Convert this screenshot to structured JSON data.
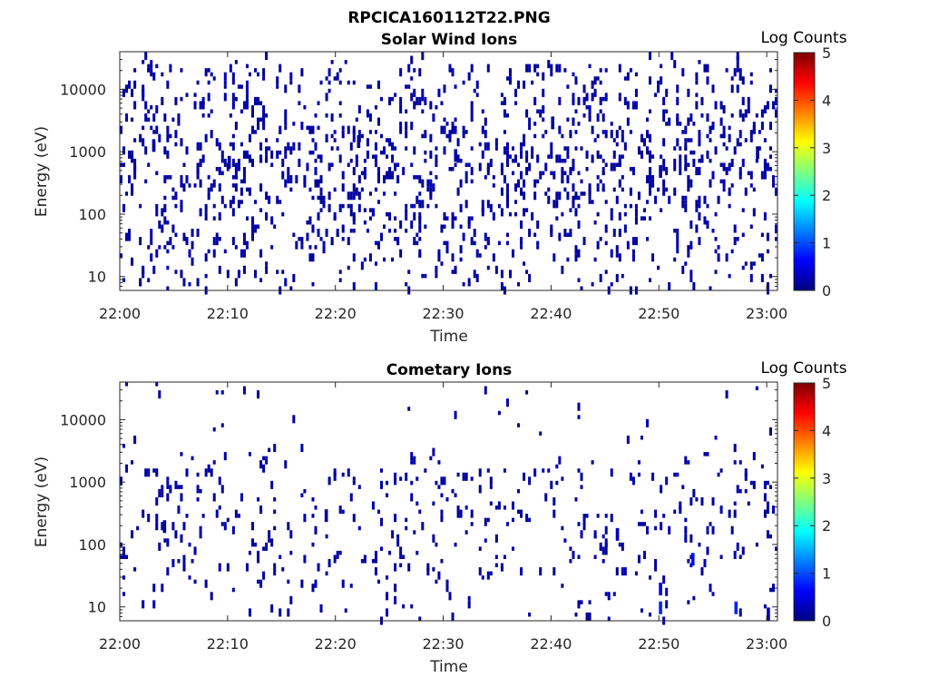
{
  "figure": {
    "title": "RPCICA160112T22.PNG"
  },
  "colorbar": {
    "colors": [
      "#00007f",
      "#0000ff",
      "#007fff",
      "#00ffff",
      "#7fff7f",
      "#ffff00",
      "#ff7f00",
      "#ff0000",
      "#7f0000"
    ]
  },
  "chart_data": [
    {
      "type": "heatmap",
      "title": "Solar Wind Ions",
      "xlabel": "Time",
      "ylabel": "Energy (eV)",
      "x_ticks": [
        "22:00",
        "22:10",
        "22:20",
        "22:30",
        "22:40",
        "22:50",
        "23:00"
      ],
      "y_ticks": [
        "10",
        "100",
        "1000",
        "10000"
      ],
      "y_scale": "log",
      "xlim": [
        "22:00",
        "23:01"
      ],
      "ylim": [
        6,
        40000
      ],
      "colorbar_label": "Log Counts",
      "colorbar_ticks": [
        "0",
        "1",
        "2",
        "3",
        "4",
        "5"
      ],
      "colorbar_range": [
        0,
        5
      ],
      "grid": false,
      "description_of_values": "sparse single-count pixels (log counts 0-0.3) scattered 20-20000 eV across full hour",
      "sample_points": [
        {
          "time": "22:03",
          "energy_eV": 1300,
          "log_counts": 0.2
        },
        {
          "time": "22:10",
          "energy_eV": 700,
          "log_counts": 0.1
        },
        {
          "time": "22:22",
          "energy_eV": 1500,
          "log_counts": 0.1
        },
        {
          "time": "22:31",
          "energy_eV": 900,
          "log_counts": 0.2
        },
        {
          "time": "22:40",
          "energy_eV": 3000,
          "log_counts": 0.1
        },
        {
          "time": "22:50",
          "energy_eV": 500,
          "log_counts": 0.2
        },
        {
          "time": "22:59",
          "energy_eV": 1000,
          "log_counts": 0.1
        }
      ]
    },
    {
      "type": "heatmap",
      "title": "Cometary Ions",
      "xlabel": "Time",
      "ylabel": "Energy (eV)",
      "x_ticks": [
        "22:00",
        "22:10",
        "22:20",
        "22:30",
        "22:40",
        "22:50",
        "23:00"
      ],
      "y_ticks": [
        "10",
        "100",
        "1000",
        "10000"
      ],
      "y_scale": "log",
      "xlim": [
        "22:00",
        "23:01"
      ],
      "ylim": [
        6,
        40000
      ],
      "colorbar_label": "Log Counts",
      "colorbar_ticks": [
        "0",
        "1",
        "2",
        "3",
        "4",
        "5"
      ],
      "colorbar_range": [
        0,
        5
      ],
      "grid": false,
      "sample_points": [
        {
          "time": "22:04",
          "energy_eV": 200,
          "log_counts": 0.1
        },
        {
          "time": "22:19",
          "energy_eV": 300,
          "log_counts": 0.2
        },
        {
          "time": "22:46",
          "energy_eV": 150,
          "log_counts": 0.3
        },
        {
          "time": "22:50",
          "energy_eV": 10,
          "log_counts": 0.8
        },
        {
          "time": "22:50",
          "energy_eV": 20,
          "log_counts": 0.6
        },
        {
          "time": "22:53",
          "energy_eV": 60,
          "log_counts": 0.7
        },
        {
          "time": "22:57",
          "energy_eV": 10,
          "log_counts": 0.8
        },
        {
          "time": "23:00",
          "energy_eV": 8,
          "log_counts": 0.3
        }
      ]
    }
  ]
}
